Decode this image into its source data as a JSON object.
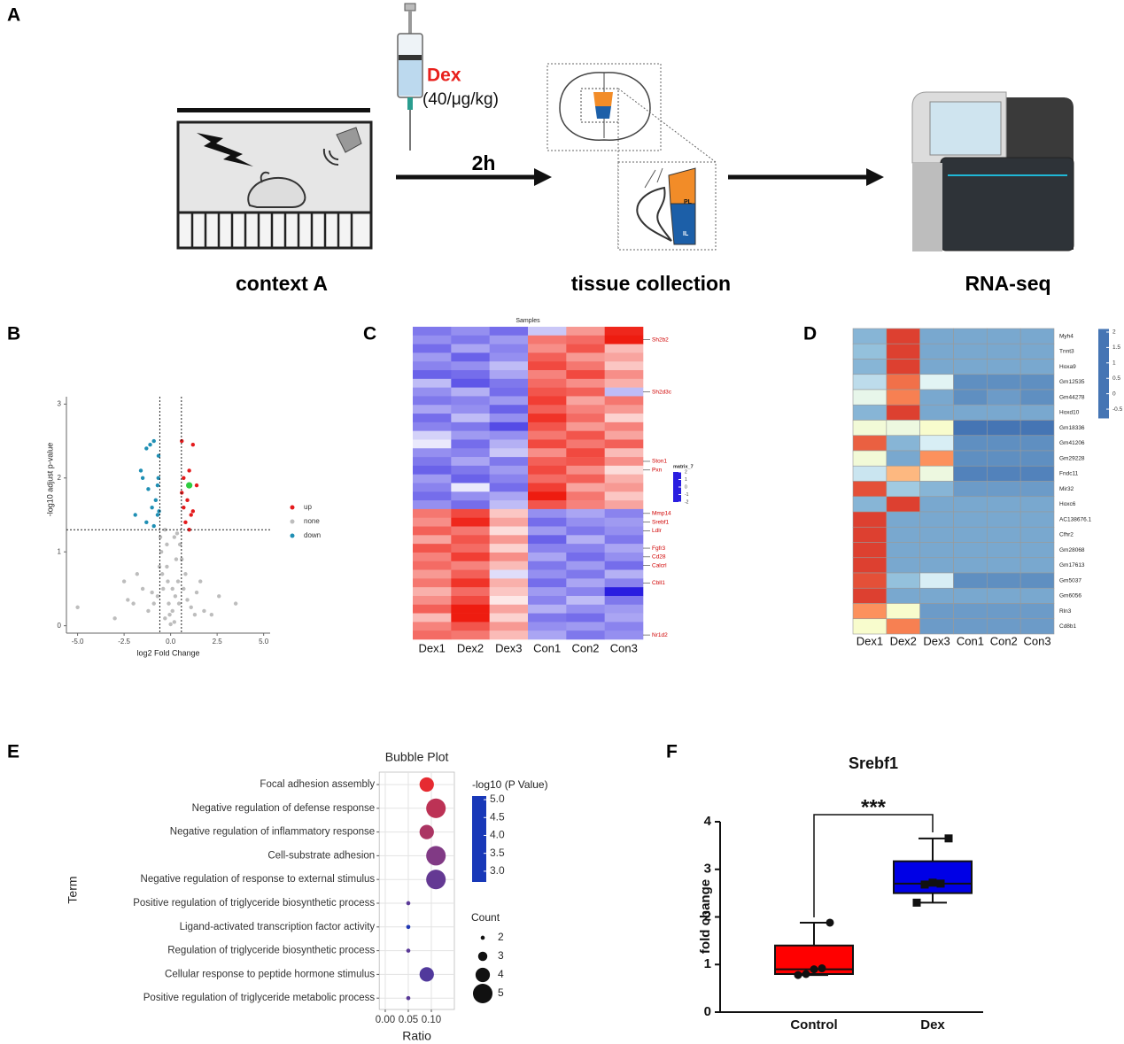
{
  "panel_labels": [
    "A",
    "B",
    "C",
    "D",
    "E",
    "F"
  ],
  "schematic": {
    "drug": "Dex",
    "dose": "(40/μg/kg)",
    "interval": "2h",
    "steps": [
      "context A",
      "tissue collection",
      "RNA-seq"
    ],
    "regions": [
      "PL",
      "IL"
    ]
  },
  "chart_data": [
    {
      "type": "scatter",
      "xlabel": "log2 Fold Change",
      "ylabel": "-log10 adjust p-value",
      "xlim": [
        -5.6,
        5.35
      ],
      "ylim": [
        -0.1,
        3.1
      ],
      "xticks": [
        {
          "value": -5,
          "label": "-5.0"
        },
        -2.5,
        {
          "value": 0,
          "label": "0.0"
        },
        2.5,
        {
          "value": 5,
          "label": "5.0"
        }
      ],
      "yticks": [
        0,
        1,
        2,
        3
      ],
      "thresholds_x": [
        -0.58,
        0.58
      ],
      "threshold_y": 1.3,
      "legend": "right",
      "series": [
        {
          "name": "up",
          "color": "#e41a1c",
          "x": [
            0.6,
            1.0,
            1.2,
            0.7,
            1.4,
            0.9,
            0.7,
            1.1,
            0.8,
            1.0,
            1.2,
            0.6
          ],
          "values": [
            2.5,
            2.1,
            2.45,
            2.0,
            1.9,
            1.7,
            1.6,
            1.5,
            1.4,
            1.3,
            1.55,
            1.8
          ]
        },
        {
          "name": "none",
          "color": "#bdbdbd",
          "x": [
            -0.3,
            0.2,
            -0.1,
            0.1,
            0.0,
            -0.4,
            0.4,
            -0.2,
            0.3,
            -0.5,
            0.5,
            -0.7,
            0.7,
            -0.9,
            0.9,
            -1.2,
            1.1,
            -1.5,
            1.4,
            -2.0,
            1.8,
            -2.5,
            2.2,
            -3.0,
            3.5,
            -5.0,
            0.2,
            -0.3,
            0.35,
            -0.45,
            0.1,
            -0.15,
            0.6,
            -0.6,
            0.8,
            -1.0,
            1.3,
            -1.8,
            2.6,
            -0.2,
            0.45,
            -0.55,
            0.25,
            -0.05,
            1.6,
            -2.3
          ],
          "values": [
            0.1,
            0.05,
            0.3,
            0.2,
            0.02,
            0.5,
            0.6,
            0.8,
            0.9,
            1.0,
            1.1,
            0.4,
            0.5,
            0.3,
            0.35,
            0.2,
            0.25,
            0.5,
            0.45,
            0.3,
            0.2,
            0.6,
            0.15,
            0.1,
            0.3,
            0.25,
            1.2,
            1.3,
            1.25,
            0.7,
            0.5,
            0.6,
            0.9,
            0.8,
            0.7,
            0.45,
            0.15,
            0.7,
            0.4,
            1.1,
            0.3,
            1.2,
            0.4,
            0.15,
            0.6,
            0.35
          ]
        },
        {
          "name": "down",
          "color": "#1f8fb4",
          "x": [
            -0.9,
            -1.1,
            -1.3,
            -0.65,
            -1.5,
            -0.7,
            -1.2,
            -0.8,
            -1.9,
            -1.0,
            -0.62,
            -1.3,
            -0.7,
            -0.9,
            -1.6,
            -0.66
          ],
          "values": [
            2.5,
            2.45,
            2.4,
            2.3,
            2.0,
            1.9,
            1.85,
            1.7,
            1.5,
            1.6,
            1.55,
            1.4,
            1.5,
            1.35,
            2.1,
            2.0
          ]
        }
      ],
      "highlight": {
        "color": "#2ecc40",
        "x": 1.0,
        "y": 1.9
      }
    },
    {
      "type": "heatmap",
      "title": "Samples",
      "columns": [
        "Dex1",
        "Dex2",
        "Dex3",
        "Con1",
        "Con2",
        "Con3"
      ],
      "rows": [
        null,
        "Sh2b2",
        null,
        null,
        null,
        null,
        null,
        "Sh2d3c",
        null,
        null,
        null,
        null,
        null,
        null,
        null,
        "Ston1",
        "Pxn",
        null,
        null,
        null,
        null,
        "Mmp14",
        "Srebf1",
        "Ldlr",
        null,
        "Fgfr3",
        "Cd28",
        "Calcrl",
        null,
        "Cbll1",
        null,
        null,
        null,
        null,
        null,
        "Nr1d2"
      ],
      "values": [
        [
          -1.2,
          -1.0,
          -1.3,
          -0.5,
          0.9,
          1.9
        ],
        [
          -1.0,
          -1.2,
          -0.9,
          1.2,
          1.3,
          2.0
        ],
        [
          -1.3,
          -0.8,
          -1.1,
          1.0,
          1.5,
          0.6
        ],
        [
          -0.9,
          -1.4,
          -1.0,
          1.4,
          0.9,
          0.8
        ],
        [
          -1.1,
          -1.0,
          -0.6,
          1.6,
          1.2,
          0.5
        ],
        [
          -1.4,
          -1.3,
          -0.8,
          1.1,
          1.6,
          1.0
        ],
        [
          -0.6,
          -1.5,
          -1.2,
          1.3,
          1.0,
          0.7
        ],
        [
          -1.0,
          -0.7,
          -1.3,
          1.5,
          1.4,
          -0.6
        ],
        [
          -1.2,
          -1.1,
          -0.9,
          1.7,
          0.8,
          1.2
        ],
        [
          -0.8,
          -1.0,
          -1.4,
          1.4,
          1.1,
          0.9
        ],
        [
          -1.3,
          -0.6,
          -1.0,
          1.8,
          1.3,
          0.4
        ],
        [
          -1.1,
          -1.2,
          -1.6,
          1.5,
          0.9,
          1.1
        ],
        [
          -0.4,
          -0.9,
          -1.0,
          1.2,
          1.5,
          0.8
        ],
        [
          -0.2,
          -1.3,
          -0.7,
          1.6,
          1.2,
          1.4
        ],
        [
          -1.0,
          -1.1,
          -0.5,
          1.0,
          1.6,
          0.6
        ],
        [
          -1.2,
          -0.8,
          -1.2,
          1.4,
          1.5,
          1.0
        ],
        [
          -1.4,
          -1.2,
          -0.9,
          1.6,
          1.0,
          0.3
        ],
        [
          -0.9,
          -1.4,
          -1.1,
          1.3,
          1.4,
          0.7
        ],
        [
          -1.1,
          -0.2,
          -1.3,
          1.7,
          0.8,
          0.9
        ],
        [
          -1.3,
          -1.0,
          -0.8,
          2.0,
          1.2,
          0.5
        ],
        [
          -1.0,
          -1.3,
          -0.6,
          1.5,
          1.1,
          0.8
        ],
        [
          1.2,
          1.6,
          0.5,
          -1.0,
          -0.8,
          -1.1
        ],
        [
          1.0,
          1.9,
          0.8,
          -1.3,
          -1.0,
          -0.9
        ],
        [
          1.4,
          1.2,
          0.3,
          -0.9,
          -1.2,
          -1.0
        ],
        [
          0.8,
          1.5,
          0.9,
          -1.4,
          -0.7,
          -1.2
        ],
        [
          1.5,
          1.3,
          0.4,
          -1.1,
          -1.1,
          -0.8
        ],
        [
          1.1,
          1.7,
          1.0,
          -0.8,
          -1.3,
          -1.0
        ],
        [
          1.3,
          1.1,
          0.6,
          -1.2,
          -0.9,
          -1.3
        ],
        [
          0.9,
          1.4,
          -0.3,
          -1.0,
          -1.2,
          -0.7
        ],
        [
          1.2,
          1.8,
          0.7,
          -1.3,
          -0.8,
          -1.1
        ],
        [
          0.7,
          1.3,
          0.5,
          -0.9,
          -1.1,
          -2.0
        ],
        [
          1.0,
          1.6,
          0.2,
          -1.1,
          -0.6,
          -1.2
        ],
        [
          1.4,
          2.0,
          0.8,
          -0.7,
          -1.0,
          -0.9
        ],
        [
          0.6,
          2.0,
          0.4,
          -1.2,
          -1.3,
          -0.8
        ],
        [
          1.1,
          1.5,
          0.9,
          -1.0,
          -0.9,
          -1.1
        ],
        [
          1.3,
          1.2,
          0.6,
          -0.8,
          -1.2,
          -1.0
        ]
      ],
      "legend_title": "matrix_7",
      "colorlim": [
        -2,
        2
      ],
      "colorticks": [
        2,
        1,
        0,
        -1,
        -2
      ],
      "colors": [
        "#2a1ee0",
        "#ffffff",
        "#ee1c10"
      ]
    },
    {
      "type": "heatmap",
      "columns": [
        "Dex1",
        "Dex2",
        "Dex3",
        "Con1",
        "Con2",
        "Con3"
      ],
      "rows": [
        "Myh4",
        "Tnnt3",
        "Hoxa9",
        "Gm12535",
        "Gm44278",
        "Hoxd10",
        "Gm18336",
        "Gm41206",
        "Gm29228",
        "Fndc11",
        "Mir32",
        "Hoxc6",
        "AC138676.1",
        "Cfhr2",
        "Gm28068",
        "Gm17613",
        "Gm5037",
        "Gm6056",
        "Rln3",
        "Cd8b1"
      ],
      "values": [
        [
          -0.3,
          2.0,
          -0.4,
          -0.4,
          -0.4,
          -0.4
        ],
        [
          -0.2,
          2.0,
          -0.4,
          -0.4,
          -0.4,
          -0.4
        ],
        [
          -0.3,
          2.0,
          -0.4,
          -0.4,
          -0.4,
          -0.4
        ],
        [
          0.1,
          1.7,
          0.4,
          -0.6,
          -0.6,
          -0.6
        ],
        [
          0.5,
          1.6,
          -0.4,
          -0.6,
          -0.5,
          -0.6
        ],
        [
          -0.3,
          2.0,
          -0.4,
          -0.4,
          -0.4,
          -0.4
        ],
        [
          0.7,
          0.6,
          0.8,
          -0.8,
          -0.8,
          -0.8
        ],
        [
          1.8,
          -0.3,
          0.3,
          -0.6,
          -0.6,
          -0.6
        ],
        [
          0.7,
          -0.4,
          1.5,
          -0.6,
          -0.6,
          -0.6
        ],
        [
          0.2,
          1.3,
          0.6,
          -0.7,
          -0.7,
          -0.7
        ],
        [
          1.9,
          -0.1,
          -0.3,
          -0.5,
          -0.5,
          -0.5
        ],
        [
          -0.3,
          2.0,
          -0.4,
          -0.4,
          -0.4,
          -0.4
        ],
        [
          2.0,
          -0.4,
          -0.4,
          -0.4,
          -0.4,
          -0.4
        ],
        [
          2.0,
          -0.4,
          -0.4,
          -0.4,
          -0.4,
          -0.4
        ],
        [
          2.0,
          -0.4,
          -0.4,
          -0.4,
          -0.4,
          -0.4
        ],
        [
          2.0,
          -0.4,
          -0.4,
          -0.4,
          -0.4,
          -0.4
        ],
        [
          1.9,
          -0.2,
          0.3,
          -0.6,
          -0.6,
          -0.6
        ],
        [
          2.0,
          -0.4,
          -0.4,
          -0.4,
          -0.4,
          -0.4
        ],
        [
          1.5,
          0.8,
          -0.5,
          -0.5,
          -0.5,
          -0.5
        ],
        [
          0.8,
          1.6,
          -0.5,
          -0.5,
          -0.5,
          -0.5
        ]
      ],
      "colorlim": [
        -0.8,
        2.1
      ],
      "colorticks": [
        2,
        1.5,
        1,
        0.5,
        0,
        -0.5
      ],
      "colors": [
        "#4575b4",
        "#91bfdb",
        "#e0f3f8",
        "#ffffbf",
        "#fc8d59",
        "#d73027"
      ]
    },
    {
      "type": "bubble",
      "title": "Bubble Plot",
      "xlabel": "Ratio",
      "ylabel": "Term",
      "categories": [
        "Focal adhesion assembly",
        "Negative regulation of defense response",
        "Negative regulation of inflammatory response",
        "Cell-substrate adhesion",
        "Negative regulation of response to external stimulus",
        "Positive regulation of triglyceride biosynthetic process",
        "Ligand-activated transcription factor activity",
        "Regulation of triglyceride biosynthetic process",
        "Cellular response to peptide hormone stimulus",
        "Positive regulation of triglyceride metabolic process"
      ],
      "values": [
        0.09,
        0.11,
        0.09,
        0.11,
        0.11,
        0.05,
        0.05,
        0.05,
        0.09,
        0.05
      ],
      "counts": [
        4,
        5,
        4,
        5,
        5,
        2,
        2,
        2,
        4,
        2
      ],
      "neg_log10_p": [
        5.0,
        4.5,
        4.3,
        3.8,
        3.5,
        3.4,
        2.8,
        3.4,
        3.3,
        3.4
      ],
      "xlim": [
        -0.013,
        0.15
      ],
      "xticks": [
        {
          "value": 0,
          "label": "0.00"
        },
        {
          "value": 0.05,
          "label": "0.05"
        },
        {
          "value": 0.1,
          "label": "0.10"
        }
      ],
      "grid": true,
      "color_title": "-log10 (P Value)",
      "colorlim": [
        2.7,
        5.1
      ],
      "colorticks": [
        {
          "value": 5,
          "label": "5.0"
        },
        4.5,
        {
          "value": 4,
          "label": "4.0"
        },
        3.5,
        {
          "value": 3,
          "label": "3.0"
        }
      ],
      "colors": [
        "#1838b8",
        "#8a3a80",
        "#ee2a2a"
      ],
      "size_title": "Count",
      "size_ticks": [
        2,
        3,
        4,
        5
      ]
    },
    {
      "type": "box",
      "title": "Srebf1",
      "ylabel": "fold change",
      "annotation": "***",
      "ylim": [
        0,
        4
      ],
      "yticks": [
        0,
        1,
        2,
        3,
        4
      ],
      "series": [
        {
          "name": "Control",
          "color": "#ff0000",
          "min": 0.78,
          "q1": 0.8,
          "median": 0.9,
          "q3": 1.4,
          "max": 1.88,
          "points": [
            0.78,
            0.8,
            0.9,
            0.92,
            1.88
          ]
        },
        {
          "name": "Dex",
          "color": "#0000e6",
          "min": 2.3,
          "q1": 2.5,
          "median": 2.7,
          "q3": 3.17,
          "max": 3.65,
          "points": [
            2.3,
            2.68,
            2.72,
            2.7,
            3.65
          ]
        }
      ]
    }
  ]
}
